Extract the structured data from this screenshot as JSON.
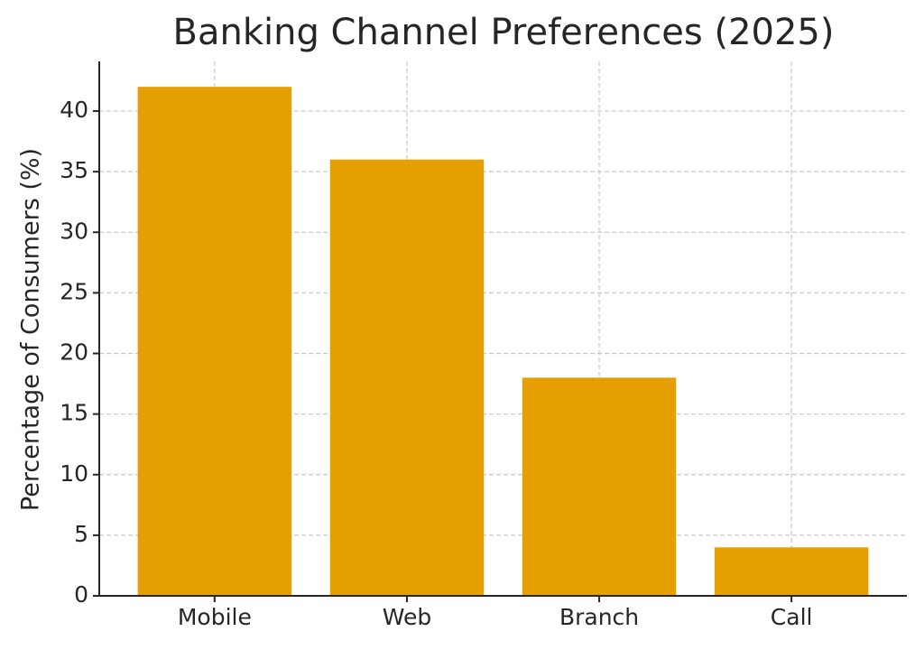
{
  "chart_data": {
    "type": "bar",
    "title": "Banking Channel Preferences (2025)",
    "y_label": "Percentage of Consumers (%)",
    "categories": [
      "Mobile",
      "Web",
      "Branch",
      "Call"
    ],
    "values": [
      42,
      36,
      18,
      4
    ],
    "color": "#e69f00",
    "ylim": [
      0,
      44.1
    ],
    "yticks": [
      0,
      5,
      10,
      15,
      20,
      25,
      30,
      35,
      40
    ],
    "grid": true
  }
}
